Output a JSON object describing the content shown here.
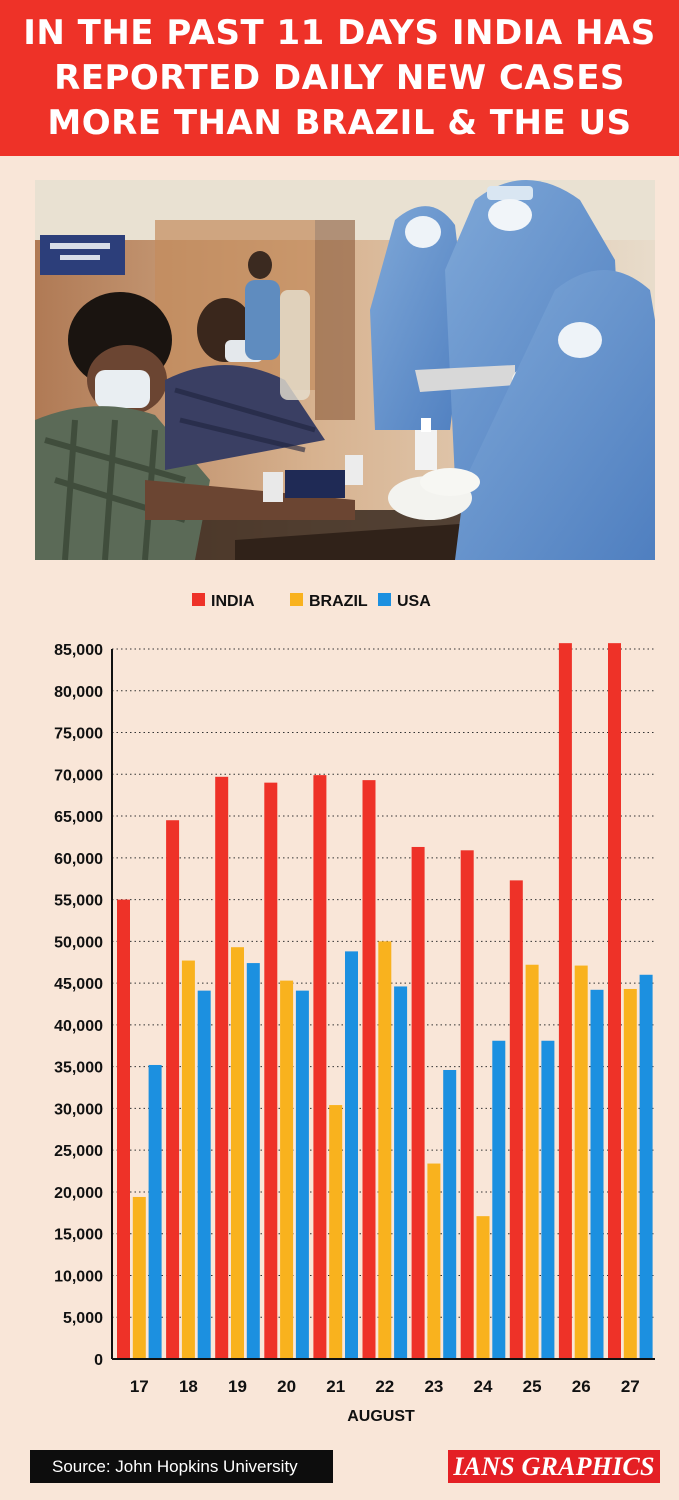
{
  "header": {
    "lines": [
      "IN THE PAST 11 DAYS INDIA HAS",
      "REPORTED DAILY NEW CASES",
      "MORE THAN BRAZIL & THE US"
    ]
  },
  "colors": {
    "india": "#ee3228",
    "brazil": "#f9b21e",
    "usa": "#1c90e0",
    "header_bg": "#ee3228",
    "background": "#f9e6d8"
  },
  "chart_data": {
    "type": "bar",
    "title": "",
    "xlabel": "AUGUST",
    "ylabel": "",
    "ylim": [
      0,
      85000
    ],
    "yticks": [
      0,
      5000,
      10000,
      15000,
      20000,
      25000,
      30000,
      35000,
      40000,
      45000,
      50000,
      55000,
      60000,
      65000,
      70000,
      75000,
      80000,
      85000
    ],
    "ytick_labels": [
      "0",
      "5,000",
      "10,000",
      "15,000",
      "20,000",
      "25,000",
      "30,000",
      "35,000",
      "40,000",
      "45,000",
      "50,000",
      "55,000",
      "60,000",
      "65,000",
      "70,000",
      "75,000",
      "80,000",
      "85,000"
    ],
    "categories": [
      "17",
      "18",
      "19",
      "20",
      "21",
      "22",
      "23",
      "24",
      "25",
      "26",
      "27"
    ],
    "series": [
      {
        "name": "INDIA",
        "color": "#ee3228",
        "values": [
          55000,
          64500,
          69700,
          69000,
          69900,
          69300,
          61300,
          60900,
          57300,
          85700,
          85700
        ]
      },
      {
        "name": "BRAZIL",
        "color": "#f9b21e",
        "values": [
          19400,
          47700,
          49300,
          45300,
          30400,
          50000,
          23400,
          17100,
          47200,
          47100,
          44300
        ]
      },
      {
        "name": "USA",
        "color": "#1c90e0",
        "values": [
          35200,
          44100,
          47400,
          44100,
          48800,
          44600,
          34600,
          38100,
          38100,
          44200,
          46000
        ]
      }
    ],
    "grid": true,
    "grid_style": "dotted",
    "legend_position": "top-center"
  },
  "footer": {
    "source": "Source: John Hopkins University",
    "credit": "IANS GRAPHICS"
  }
}
